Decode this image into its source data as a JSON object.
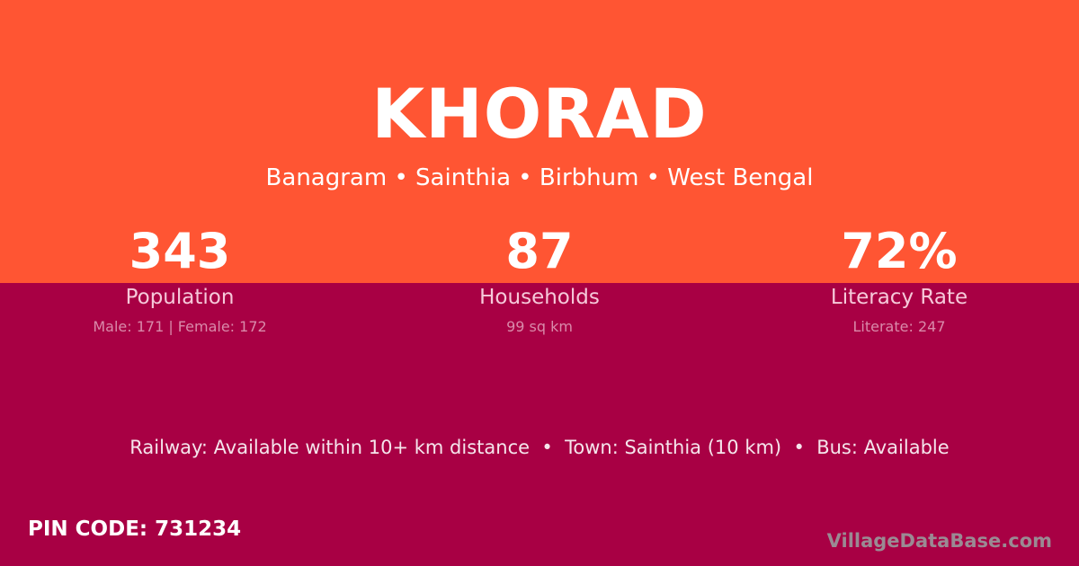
{
  "colors": {
    "top_band": "#FF5533",
    "bottom_band": "#A80044"
  },
  "village": {
    "name": "KHORAD",
    "location": "Banagram • Sainthia • Birbhum • West Bengal"
  },
  "stats": [
    {
      "value": "343",
      "label": "Population",
      "detail": "Male: 171 | Female: 172"
    },
    {
      "value": "87",
      "label": "Households",
      "detail": "99 sq km"
    },
    {
      "value": "72%",
      "label": "Literacy Rate",
      "detail": "Literate: 247"
    }
  ],
  "facts": "Railway: Available within 10+ km distance  •  Town: Sainthia (10 km)  •  Bus: Available",
  "pin_code": "PIN CODE: 731234",
  "watermark": "VillageDataBase.com"
}
